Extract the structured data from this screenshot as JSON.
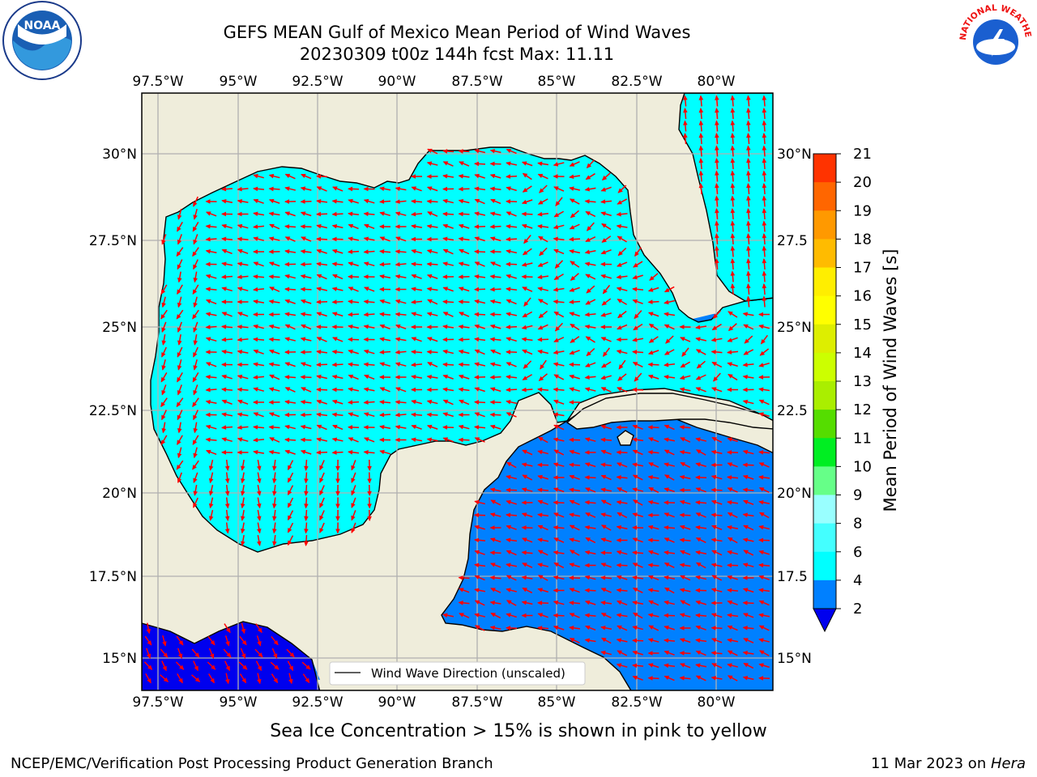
{
  "title": {
    "line1": "GEFS MEAN Gulf of Mexico Mean Period of Wind Waves",
    "line2": "20230309 t00z 144h fcst   Max: 11.11"
  },
  "map": {
    "lon_labels": [
      "97.5°W",
      "95°W",
      "92.5°W",
      "90°W",
      "87.5°W",
      "85°W",
      "82.5°W",
      "80°W"
    ],
    "lat_labels_left": [
      "30°N",
      "27.5°N",
      "25°N",
      "22.5°N",
      "20°N",
      "17.5°N",
      "15°N"
    ],
    "lat_labels_right": [
      "30°N",
      "27.5",
      "25°N",
      "22.5",
      "20°N",
      "17.5",
      "15°N"
    ],
    "legend_label": "Wind Wave Direction (unscaled)",
    "colors": {
      "land": "#efeddb",
      "level_2_4": "#0080ff",
      "level_below_2": "#0000ee",
      "level_4_6": "#00ffff",
      "level_6_8": "#44ffff",
      "level_8_9": "#99ffff",
      "arrow": "#ff0000",
      "grid": "#b0b0b0"
    }
  },
  "colorbar": {
    "label": "Mean Period of Wind Waves [s]",
    "ticks": [
      "2",
      "4",
      "6",
      "8",
      "9",
      "10",
      "11",
      "12",
      "13",
      "14",
      "15",
      "16",
      "17",
      "18",
      "19",
      "20",
      "21"
    ],
    "colors": [
      "#0080ff",
      "#00ffff",
      "#44ffff",
      "#99ffff",
      "#66ff88",
      "#00ee22",
      "#55dd00",
      "#aaee00",
      "#ccff00",
      "#ddee00",
      "#ffff00",
      "#ffee00",
      "#ffbb00",
      "#ff9900",
      "#ff6600",
      "#ff3300",
      "#ff0000"
    ],
    "under_color": "#0000ee"
  },
  "footer": {
    "note": "Sea Ice Concentration > 15% is shown in pink to yellow",
    "credit": "NCEP/EMC/Verification Post Processing Product Generation Branch",
    "date": "11 Mar 2023 on ",
    "host": "Hera"
  },
  "logos": {
    "left_text": "NOAA",
    "right_text": "NATIONAL WEATHER SERVICE"
  }
}
